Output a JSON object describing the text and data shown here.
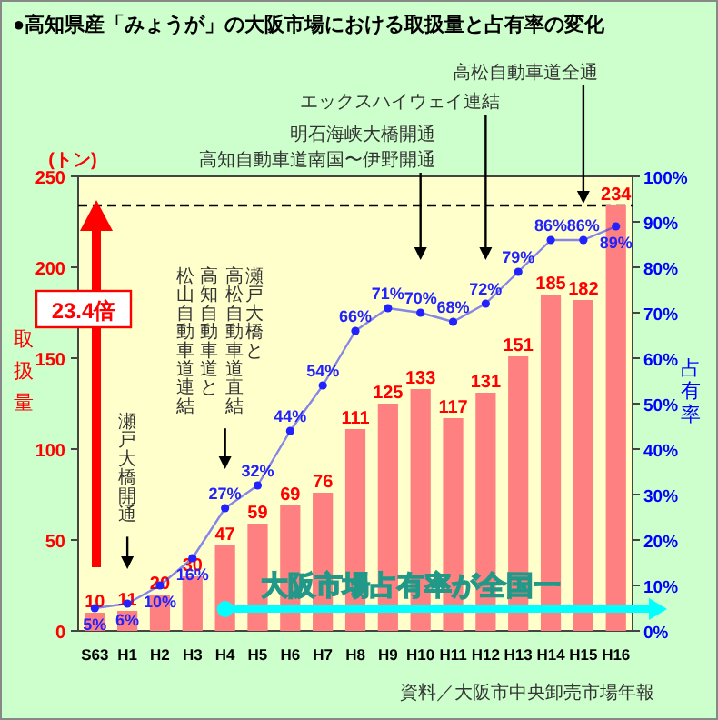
{
  "chart_data": {
    "type": "bar",
    "title": "●高知県産「みょうが」の大阪市場における取扱量と占有率の変化",
    "ylabel": "取扱量",
    "y2label": "占有率",
    "categories": [
      "S63",
      "H1",
      "H2",
      "H3",
      "H4",
      "H5",
      "H6",
      "H7",
      "H8",
      "H9",
      "H10",
      "H11",
      "H12",
      "H13",
      "H14",
      "H15",
      "H16"
    ],
    "series": [
      {
        "color": "#ff8080",
        "values": [
          10,
          11,
          20,
          30,
          47,
          59,
          69,
          76,
          111,
          125,
          133,
          117,
          131,
          151,
          185,
          182,
          234
        ]
      },
      {
        "type": "line",
        "axis": "y2",
        "color": "#2222ff",
        "values": [
          5,
          6,
          10,
          16,
          27,
          32,
          44,
          54,
          66,
          71,
          70,
          68,
          72,
          79,
          86,
          86,
          89
        ],
        "value_labels": [
          "5%",
          "6%",
          "10%",
          "16%",
          "27%",
          "32%",
          "44%",
          "54%",
          "66%",
          "71%",
          "70%",
          "68%",
          "72%",
          "79%",
          "86%",
          "86%",
          "89%"
        ]
      }
    ],
    "data_labels": true,
    "marker": "circle",
    "ylim": [
      0,
      250
    ],
    "yticks": [
      0,
      50,
      100,
      150,
      200,
      250
    ],
    "y2lim": [
      0,
      100
    ],
    "y2ticks": [
      {
        "value": 0,
        "label": "0%"
      },
      {
        "value": 10,
        "label": "10%"
      },
      {
        "value": 20,
        "label": "20%"
      },
      {
        "value": 30,
        "label": "30%"
      },
      {
        "value": 40,
        "label": "40%"
      },
      {
        "value": 50,
        "label": "50%"
      },
      {
        "value": 60,
        "label": "60%"
      },
      {
        "value": 70,
        "label": "70%"
      },
      {
        "value": 80,
        "label": "80%"
      },
      {
        "value": 90,
        "label": "90%"
      },
      {
        "value": 100,
        "label": "100%"
      }
    ],
    "ref_lines": [
      {
        "axis": "y",
        "value": 234,
        "line_style": "dashed",
        "color": "#000000"
      }
    ],
    "annotations": [
      "(トン)",
      "23.4倍",
      "大阪市場占有率が全国一",
      "資料／大阪市中央卸売市場年報",
      "瀬戸大橋開通",
      "瀬戸大橋と",
      "高松自動車道直結",
      "高知自動車道と",
      "松山自動車道連結",
      "明石海峡大橋開通",
      "高知自動車道南国〜伊野開通",
      "エックスハイウェイ連結",
      "高松自動車道全通"
    ]
  }
}
